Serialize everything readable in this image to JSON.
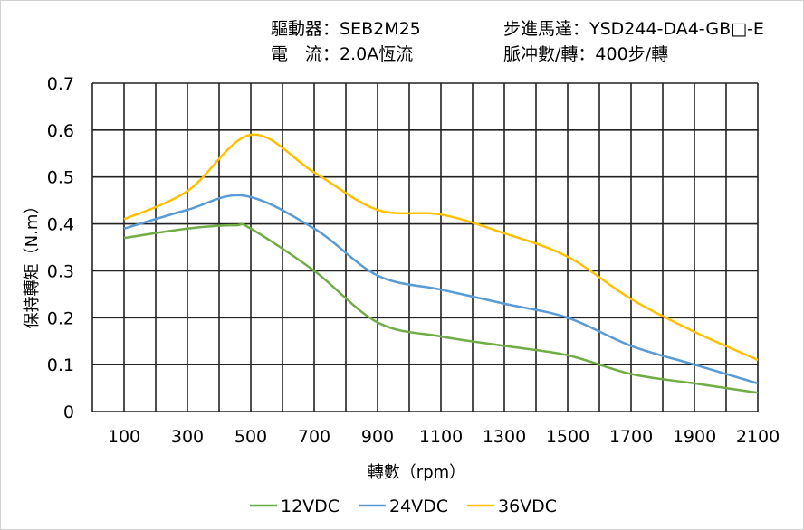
{
  "header": {
    "driver": "驅動器：SEB2M25",
    "motor": "步進馬達：YSD244-DA4-GB□-E",
    "current": "電　流：2.0A恆流",
    "pulses": "脈冲數/轉：400步/轉"
  },
  "chart_data": {
    "type": "line",
    "title": "",
    "xlabel": "轉數（rpm）",
    "ylabel": "保持轉矩（N.m）",
    "xlim": [
      0,
      2100
    ],
    "ylim": [
      0,
      0.7
    ],
    "xticks": [
      "100",
      "300",
      "500",
      "700",
      "900",
      "1100",
      "1300",
      "1500",
      "1700",
      "1900",
      "2100"
    ],
    "xtick_values": [
      100,
      300,
      500,
      700,
      900,
      1100,
      1300,
      1500,
      1700,
      1900,
      2100
    ],
    "yticks": [
      "0",
      "0.1",
      "0.2",
      "0.3",
      "0.4",
      "0.5",
      "0.6",
      "0.7"
    ],
    "ytick_values": [
      0,
      0.1,
      0.2,
      0.3,
      0.4,
      0.5,
      0.6,
      0.7
    ],
    "grid": true,
    "legend_position": "bottom",
    "series": [
      {
        "name": "12VDC",
        "color": "#70ad47",
        "x": [
          100,
          300,
          450,
          500,
          700,
          900,
          1100,
          1300,
          1500,
          1700,
          1900,
          2100
        ],
        "y": [
          0.37,
          0.39,
          0.397,
          0.39,
          0.3,
          0.19,
          0.16,
          0.14,
          0.12,
          0.08,
          0.06,
          0.04
        ]
      },
      {
        "name": "24VDC",
        "color": "#5b9bd5",
        "x": [
          100,
          300,
          480,
          700,
          900,
          1100,
          1300,
          1500,
          1700,
          1900,
          2100
        ],
        "y": [
          0.39,
          0.43,
          0.46,
          0.39,
          0.29,
          0.26,
          0.23,
          0.2,
          0.14,
          0.1,
          0.06
        ]
      },
      {
        "name": "36VDC",
        "color": "#ffc000",
        "x": [
          100,
          300,
          500,
          700,
          900,
          1100,
          1300,
          1500,
          1700,
          1900,
          2100
        ],
        "y": [
          0.41,
          0.47,
          0.59,
          0.51,
          0.43,
          0.42,
          0.38,
          0.33,
          0.24,
          0.17,
          0.11
        ]
      }
    ]
  }
}
